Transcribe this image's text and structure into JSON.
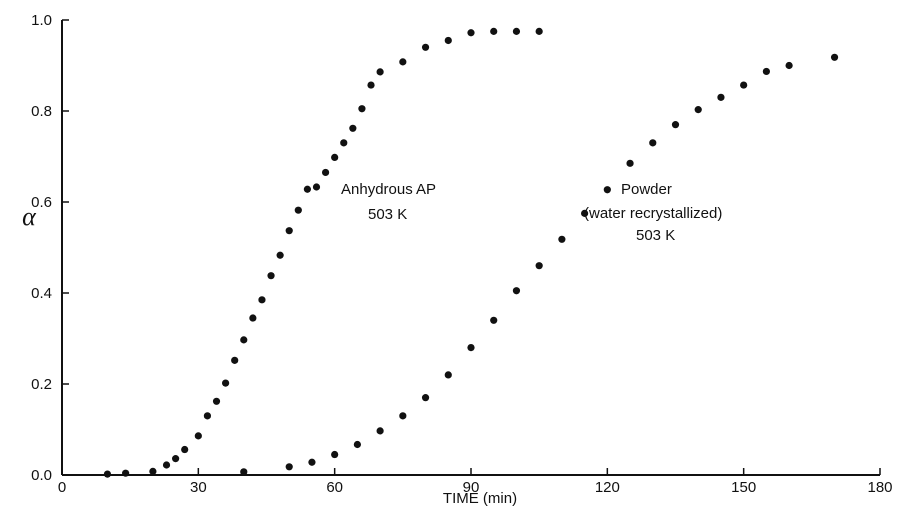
{
  "chart_data": {
    "type": "scatter",
    "title": "",
    "xlabel": "TIME (min)",
    "ylabel": "α",
    "xlim": [
      0,
      180
    ],
    "ylim": [
      0.0,
      1.0
    ],
    "x_ticks": [
      0,
      30,
      60,
      90,
      120,
      150,
      180
    ],
    "y_ticks": [
      0.0,
      0.2,
      0.4,
      0.6,
      0.8,
      1.0
    ],
    "x_tick_labels": [
      "0",
      "30",
      "60",
      "90",
      "120",
      "150",
      "180"
    ],
    "y_tick_labels": [
      "0.0",
      "0.2",
      "0.4",
      "0.6",
      "0.8",
      "1.0"
    ],
    "grid": false,
    "series": [
      {
        "annotation": [
          "Anhydrous AP",
          "503 K"
        ],
        "x": [
          10,
          14,
          20,
          23,
          25,
          27,
          30,
          32,
          34,
          36,
          38,
          40,
          42,
          44,
          46,
          48,
          50,
          52,
          54,
          56,
          58,
          60,
          62,
          64,
          66,
          68,
          70,
          75,
          80,
          85,
          90,
          95,
          100,
          105
        ],
        "y": [
          0.002,
          0.004,
          0.008,
          0.022,
          0.036,
          0.056,
          0.086,
          0.13,
          0.162,
          0.202,
          0.252,
          0.297,
          0.345,
          0.385,
          0.438,
          0.483,
          0.537,
          0.582,
          0.628,
          0.633,
          0.665,
          0.698,
          0.73,
          0.762,
          0.805,
          0.857,
          0.886,
          0.908,
          0.94,
          0.955,
          0.972,
          0.975,
          0.975,
          0.975
        ]
      },
      {
        "annotation": [
          "Powder",
          "(water recrystallized)",
          "503 K"
        ],
        "x": [
          40,
          50,
          55,
          60,
          65,
          70,
          75,
          80,
          85,
          90,
          95,
          100,
          105,
          110,
          115,
          120,
          125,
          130,
          135,
          140,
          145,
          150,
          155,
          160,
          170
        ],
        "y": [
          0.007,
          0.018,
          0.028,
          0.045,
          0.067,
          0.097,
          0.13,
          0.17,
          0.22,
          0.28,
          0.34,
          0.405,
          0.46,
          0.518,
          0.575,
          0.627,
          0.685,
          0.73,
          0.77,
          0.803,
          0.83,
          0.857,
          0.887,
          0.9,
          0.918
        ]
      }
    ]
  }
}
